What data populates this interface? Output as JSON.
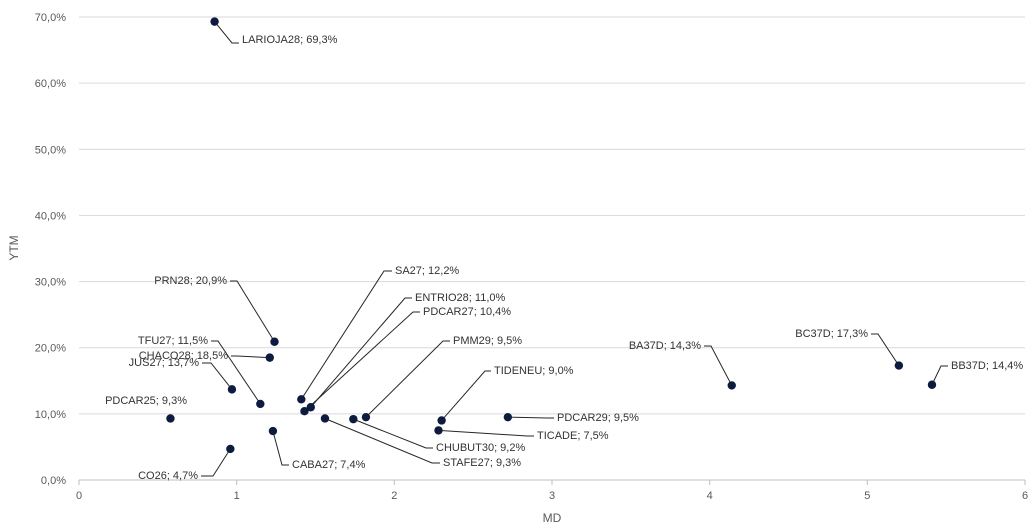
{
  "chart_data": {
    "type": "scatter",
    "title": "",
    "xlabel": "MD",
    "ylabel": "YTM",
    "xlim": [
      0,
      6
    ],
    "ylim": [
      0,
      70
    ],
    "x_ticks": [
      "0",
      "1",
      "2",
      "3",
      "4",
      "5",
      "6"
    ],
    "y_ticks": [
      "0,0%",
      "10,0%",
      "20,0%",
      "30,0%",
      "40,0%",
      "50,0%",
      "60,0%",
      "70,0%"
    ],
    "grid": "horizontal",
    "legend": "none",
    "marker_color": "#0d1b3e",
    "points": [
      {
        "label": "LARIOJA28; 69,3%",
        "x": 0.86,
        "y": 69.3
      },
      {
        "label": "PRN28; 20,9%",
        "x": 1.24,
        "y": 20.9
      },
      {
        "label": "CHACO28; 18,5%",
        "x": 1.21,
        "y": 18.5
      },
      {
        "label": "TFU27; 11,5%",
        "x": 1.15,
        "y": 11.5
      },
      {
        "label": "JUS27; 13,7%",
        "x": 0.97,
        "y": 13.7
      },
      {
        "label": "PDCAR25; 9,3%",
        "x": 0.58,
        "y": 9.3
      },
      {
        "label": "CO26; 4,7%",
        "x": 0.96,
        "y": 4.7
      },
      {
        "label": "CABA27; 7,4%",
        "x": 1.23,
        "y": 7.4
      },
      {
        "label": "SA27; 12,2%",
        "x": 1.41,
        "y": 12.2
      },
      {
        "label": "ENTRIO28; 11,0%",
        "x": 1.47,
        "y": 11.0
      },
      {
        "label": "PDCAR27; 10,4%",
        "x": 1.43,
        "y": 10.4
      },
      {
        "label": "STAFE27; 9,3%",
        "x": 1.56,
        "y": 9.3
      },
      {
        "label": "CHUBUT30; 9,2%",
        "x": 1.74,
        "y": 9.2
      },
      {
        "label": "PMM29; 9,5%",
        "x": 1.82,
        "y": 9.5
      },
      {
        "label": "TICADE; 7,5%",
        "x": 2.28,
        "y": 7.5
      },
      {
        "label": "TIDENEU; 9,0%",
        "x": 2.3,
        "y": 9.0
      },
      {
        "label": "PDCAR29; 9,5%",
        "x": 2.72,
        "y": 9.5
      },
      {
        "label": "BA37D; 14,3%",
        "x": 4.14,
        "y": 14.3
      },
      {
        "label": "BC37D; 17,3%",
        "x": 5.2,
        "y": 17.3
      },
      {
        "label": "BB37D; 14,4%",
        "x": 5.41,
        "y": 14.4
      }
    ]
  }
}
